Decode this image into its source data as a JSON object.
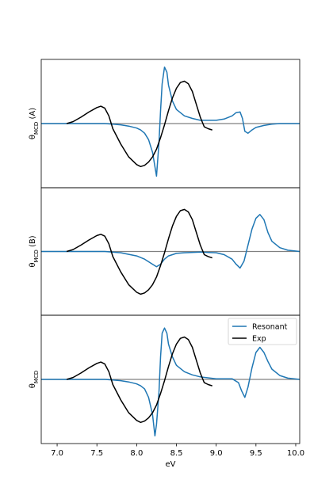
{
  "chart_data": {
    "type": "line",
    "xlabel": "eV",
    "xlim": [
      6.8,
      10.05
    ],
    "x_ticks": [
      "7.0",
      "7.5",
      "8.0",
      "8.5",
      "9.0",
      "9.5",
      "10.0"
    ],
    "colors": {
      "Resonant": "#1f77b4",
      "Exp": "#000000",
      "zero_line": "#808080"
    },
    "legend": {
      "location": "upper right of bottom panel",
      "entries": [
        "Resonant",
        "Exp"
      ]
    },
    "panels": [
      {
        "ylabel": "θ_MCD (A)",
        "ylabel_main": "θ",
        "ylabel_sub": "MCD",
        "ylabel_suffix": " (A)",
        "ylim": [
          -1.0,
          1.0
        ],
        "series": [
          {
            "name": "Resonant",
            "x": [
              6.8,
              7.6,
              7.7,
              7.8,
              7.9,
              8.0,
              8.05,
              8.1,
              8.15,
              8.2,
              8.25,
              8.28,
              8.3,
              8.32,
              8.35,
              8.38,
              8.4,
              8.45,
              8.5,
              8.6,
              8.7,
              8.8,
              8.9,
              9.0,
              9.1,
              9.2,
              9.25,
              9.3,
              9.33,
              9.36,
              9.4,
              9.45,
              9.5,
              9.6,
              9.7,
              9.8,
              10.05
            ],
            "y": [
              0.0,
              0.0,
              -0.01,
              -0.02,
              -0.04,
              -0.07,
              -0.1,
              -0.15,
              -0.25,
              -0.45,
              -0.82,
              -0.3,
              0.2,
              0.62,
              0.88,
              0.8,
              0.6,
              0.35,
              0.22,
              0.12,
              0.08,
              0.05,
              0.05,
              0.05,
              0.07,
              0.12,
              0.17,
              0.18,
              0.08,
              -0.12,
              -0.15,
              -0.1,
              -0.06,
              -0.03,
              -0.01,
              0.0,
              0.0
            ]
          },
          {
            "name": "Exp",
            "x": [
              7.12,
              7.2,
              7.3,
              7.4,
              7.5,
              7.55,
              7.6,
              7.65,
              7.7,
              7.8,
              7.9,
              8.0,
              8.05,
              8.1,
              8.15,
              8.2,
              8.25,
              8.3,
              8.35,
              8.4,
              8.45,
              8.5,
              8.55,
              8.6,
              8.65,
              8.7,
              8.75,
              8.8,
              8.85,
              8.9,
              8.95
            ],
            "y": [
              0.0,
              0.03,
              0.1,
              0.18,
              0.25,
              0.27,
              0.24,
              0.12,
              -0.08,
              -0.32,
              -0.52,
              -0.64,
              -0.67,
              -0.65,
              -0.6,
              -0.52,
              -0.4,
              -0.22,
              -0.02,
              0.2,
              0.4,
              0.55,
              0.64,
              0.66,
              0.62,
              0.5,
              0.3,
              0.1,
              -0.05,
              -0.08,
              -0.1
            ]
          }
        ]
      },
      {
        "ylabel": "θ_MCD (B)",
        "ylabel_main": "θ",
        "ylabel_sub": "MCD",
        "ylabel_suffix": " (B)",
        "ylim": [
          -1.0,
          1.0
        ],
        "series": [
          {
            "name": "Resonant",
            "x": [
              6.8,
              7.6,
              7.8,
              8.0,
              8.1,
              8.2,
              8.25,
              8.3,
              8.35,
              8.4,
              8.5,
              8.6,
              8.8,
              9.0,
              9.1,
              9.2,
              9.25,
              9.3,
              9.35,
              9.4,
              9.45,
              9.5,
              9.55,
              9.6,
              9.65,
              9.7,
              9.8,
              9.9,
              10.05
            ],
            "y": [
              0.0,
              0.0,
              -0.02,
              -0.07,
              -0.12,
              -0.2,
              -0.24,
              -0.2,
              -0.12,
              -0.07,
              -0.03,
              -0.02,
              -0.01,
              -0.02,
              -0.05,
              -0.12,
              -0.2,
              -0.26,
              -0.15,
              0.1,
              0.35,
              0.52,
              0.58,
              0.5,
              0.3,
              0.16,
              0.06,
              0.02,
              0.0
            ]
          },
          {
            "name": "Exp",
            "x": [
              7.12,
              7.2,
              7.3,
              7.4,
              7.5,
              7.55,
              7.6,
              7.65,
              7.7,
              7.8,
              7.9,
              8.0,
              8.05,
              8.1,
              8.15,
              8.2,
              8.25,
              8.3,
              8.35,
              8.4,
              8.45,
              8.5,
              8.55,
              8.6,
              8.65,
              8.7,
              8.75,
              8.8,
              8.85,
              8.9,
              8.95
            ],
            "y": [
              0.0,
              0.03,
              0.1,
              0.18,
              0.25,
              0.27,
              0.24,
              0.12,
              -0.08,
              -0.32,
              -0.52,
              -0.64,
              -0.67,
              -0.65,
              -0.6,
              -0.52,
              -0.4,
              -0.22,
              -0.02,
              0.2,
              0.4,
              0.55,
              0.64,
              0.66,
              0.62,
              0.5,
              0.3,
              0.1,
              -0.05,
              -0.08,
              -0.1
            ]
          }
        ]
      },
      {
        "ylabel": "θ_MCD",
        "ylabel_main": "θ",
        "ylabel_sub": "MCD",
        "ylabel_suffix": "",
        "ylim": [
          -1.0,
          1.0
        ],
        "series": [
          {
            "name": "Resonant",
            "x": [
              6.8,
              7.6,
              7.7,
              7.8,
              7.9,
              8.0,
              8.05,
              8.1,
              8.15,
              8.2,
              8.23,
              8.25,
              8.28,
              8.3,
              8.32,
              8.35,
              8.38,
              8.4,
              8.45,
              8.5,
              8.6,
              8.7,
              8.8,
              9.0,
              9.2,
              9.28,
              9.32,
              9.36,
              9.4,
              9.45,
              9.5,
              9.55,
              9.6,
              9.65,
              9.7,
              9.8,
              9.9,
              10.05
            ],
            "y": [
              0.0,
              0.0,
              -0.01,
              -0.02,
              -0.04,
              -0.07,
              -0.1,
              -0.15,
              -0.28,
              -0.55,
              -0.88,
              -0.7,
              -0.2,
              0.35,
              0.72,
              0.8,
              0.72,
              0.55,
              0.35,
              0.22,
              0.12,
              0.07,
              0.04,
              0.01,
              0.01,
              -0.05,
              -0.18,
              -0.28,
              -0.12,
              0.18,
              0.42,
              0.5,
              0.42,
              0.28,
              0.16,
              0.06,
              0.02,
              0.0
            ]
          },
          {
            "name": "Exp",
            "x": [
              7.12,
              7.2,
              7.3,
              7.4,
              7.5,
              7.55,
              7.6,
              7.65,
              7.7,
              7.8,
              7.9,
              8.0,
              8.05,
              8.1,
              8.15,
              8.2,
              8.25,
              8.3,
              8.35,
              8.4,
              8.45,
              8.5,
              8.55,
              8.6,
              8.65,
              8.7,
              8.75,
              8.8,
              8.85,
              8.9,
              8.95
            ],
            "y": [
              0.0,
              0.03,
              0.1,
              0.18,
              0.25,
              0.27,
              0.24,
              0.12,
              -0.08,
              -0.32,
              -0.52,
              -0.64,
              -0.67,
              -0.65,
              -0.6,
              -0.52,
              -0.4,
              -0.22,
              -0.02,
              0.2,
              0.4,
              0.55,
              0.64,
              0.66,
              0.62,
              0.5,
              0.3,
              0.1,
              -0.05,
              -0.08,
              -0.1
            ]
          }
        ]
      }
    ]
  }
}
